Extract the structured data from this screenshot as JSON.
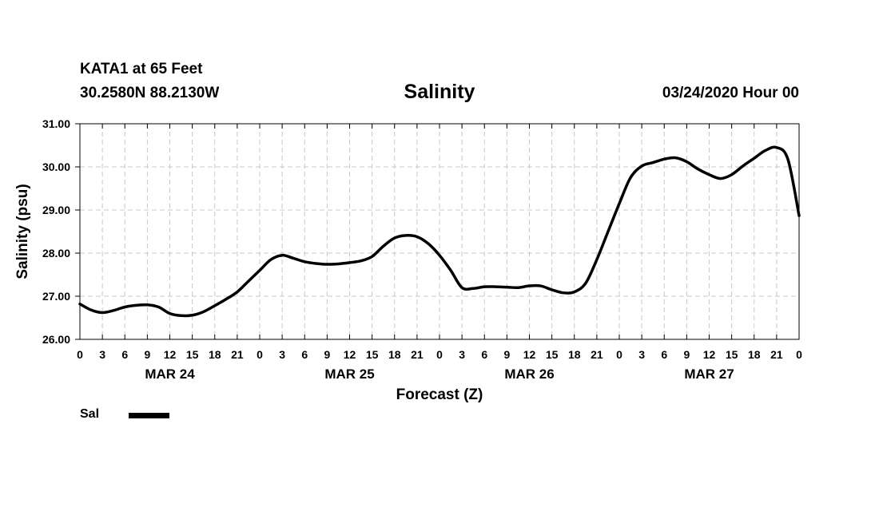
{
  "header": {
    "station": "KATA1 at 65 Feet",
    "coordinates": "30.2580N 88.2130W",
    "issued": "03/24/2020 Hour 00"
  },
  "chart_data": {
    "type": "line",
    "title": "Salinity",
    "xlabel": "Forecast (Z)",
    "ylabel": "Salinity (psu)",
    "ylim": [
      26.0,
      31.0
    ],
    "yticks": [
      "26.00",
      "27.00",
      "28.00",
      "29.00",
      "30.00",
      "31.00"
    ],
    "xlim_hours": [
      0,
      96
    ],
    "x_tick_labels": [
      "0",
      "3",
      "6",
      "9",
      "12",
      "15",
      "18",
      "21",
      "0",
      "3",
      "6",
      "9",
      "12",
      "15",
      "18",
      "21",
      "0",
      "3",
      "6",
      "9",
      "12",
      "15",
      "18",
      "21",
      "0",
      "3",
      "6",
      "9",
      "12",
      "15",
      "18",
      "21",
      "0"
    ],
    "day_labels": [
      {
        "label": "MAR 24",
        "center_hour": 12
      },
      {
        "label": "MAR 25",
        "center_hour": 36
      },
      {
        "label": "MAR 26",
        "center_hour": 60
      },
      {
        "label": "MAR 27",
        "center_hour": 84
      }
    ],
    "grid": true,
    "legend_placement": "bottom-left",
    "series": [
      {
        "name": "Sal",
        "color": "#000000",
        "x": [
          0,
          1.5,
          3,
          4.5,
          6,
          7.5,
          9,
          10.5,
          12,
          13.5,
          15,
          16.5,
          18,
          19.5,
          21,
          22.5,
          24,
          25.5,
          27,
          28.5,
          30,
          31.5,
          33,
          34.5,
          36,
          37.5,
          39,
          40.5,
          42,
          43.5,
          45,
          46.5,
          48,
          49.5,
          51,
          52.5,
          54,
          55.5,
          57,
          58.5,
          60,
          61.5,
          63,
          64.5,
          66,
          67.5,
          69,
          70.5,
          72,
          73.5,
          75,
          76.5,
          78,
          79.5,
          81,
          82.5,
          84,
          85.5,
          87,
          88.5,
          90,
          91.5,
          93,
          94.5,
          96
        ],
        "values": [
          26.82,
          26.68,
          26.62,
          26.67,
          26.75,
          26.79,
          26.8,
          26.75,
          26.6,
          26.55,
          26.56,
          26.64,
          26.78,
          26.93,
          27.1,
          27.35,
          27.6,
          27.85,
          27.95,
          27.88,
          27.8,
          27.76,
          27.74,
          27.75,
          27.78,
          27.82,
          27.92,
          28.16,
          28.35,
          28.41,
          28.38,
          28.22,
          27.95,
          27.6,
          27.2,
          27.18,
          27.22,
          27.22,
          27.21,
          27.2,
          27.24,
          27.24,
          27.15,
          27.08,
          27.1,
          27.3,
          27.85,
          28.5,
          29.15,
          29.75,
          30.02,
          30.1,
          30.18,
          30.21,
          30.12,
          29.95,
          29.82,
          29.73,
          29.82,
          30.02,
          30.2,
          30.38,
          30.45,
          30.18,
          28.87
        ]
      }
    ]
  }
}
